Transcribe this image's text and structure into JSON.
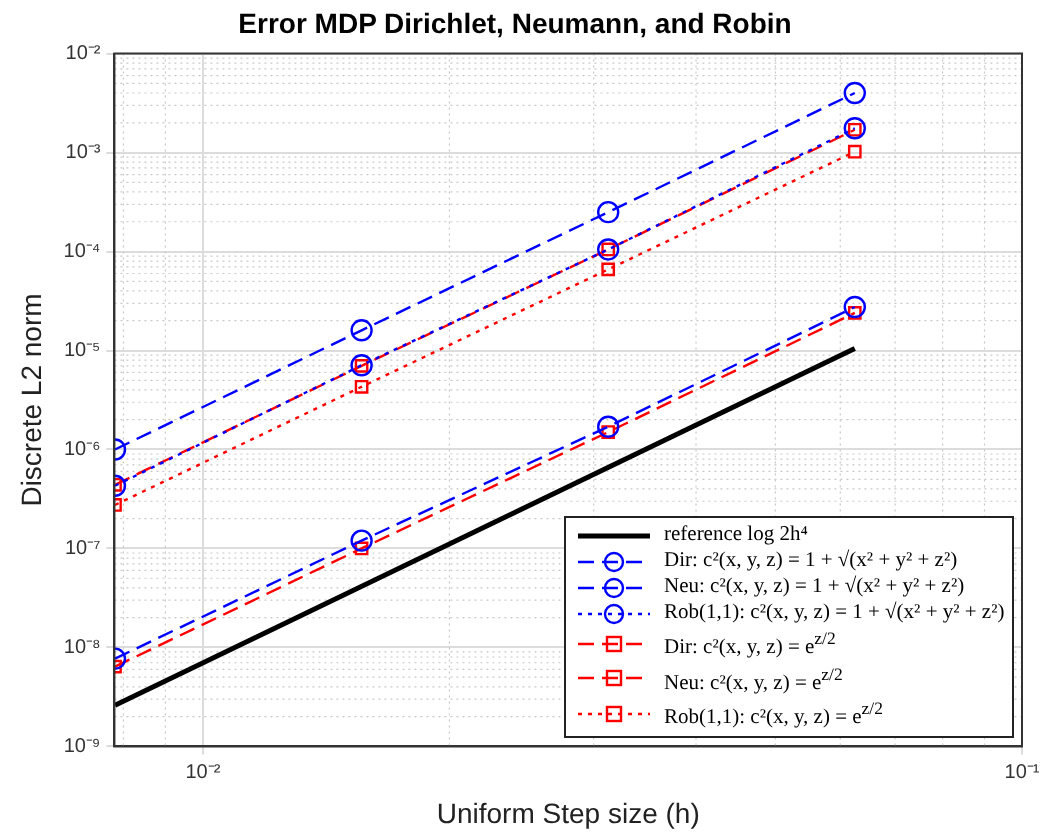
{
  "chart_data": {
    "type": "line",
    "title": "Error MDP Dirichlet, Neumann, and Robin",
    "xlabel": "Uniform Step size (h)",
    "ylabel": "Discrete L2 norm",
    "x": [
      0.0078125,
      0.015625,
      0.03125,
      0.0625
    ],
    "xlim": [
      0.0078,
      0.1
    ],
    "ylim": [
      1e-09,
      0.01
    ],
    "log": "xy",
    "grid": true,
    "legend": "bottom right",
    "xticks": [
      {
        "value": 0.01,
        "label": "10⁻²"
      },
      {
        "value": 0.1,
        "label": "10⁻¹"
      }
    ],
    "yticks": [
      {
        "value": 1e-09,
        "label": "10⁻⁹"
      },
      {
        "value": 1e-08,
        "label": "10⁻⁸"
      },
      {
        "value": 1e-07,
        "label": "10⁻⁷"
      },
      {
        "value": 1e-06,
        "label": "10⁻⁶"
      },
      {
        "value": 1e-05,
        "label": "10⁻⁵"
      },
      {
        "value": 0.0001,
        "label": "10⁻⁴"
      },
      {
        "value": 0.001,
        "label": "10⁻³"
      },
      {
        "value": 0.01,
        "label": "10⁻²"
      }
    ],
    "series": [
      {
        "name": "reference log 2h⁴",
        "color": "#000000",
        "marker": "none",
        "line_style": "solid",
        "x": [
          0.0078125,
          0.0625
        ],
        "values": [
          2.6e-09,
          1.05e-05
        ]
      },
      {
        "name": "Dir: c²(x, y, z) = 1 + √(x² + y² + z²)",
        "color": "#0000ff",
        "marker": "circle",
        "line_style": "dashed",
        "values": [
          1e-06,
          1.6e-05,
          0.00025,
          0.004
        ]
      },
      {
        "name": "Neu: c²(x, y, z) = 1 + √(x² + y² + z²)",
        "color": "#0000ff",
        "marker": "circle",
        "line_style": "dashed",
        "values": [
          7.7e-09,
          1.2e-07,
          1.7e-06,
          2.75e-05
        ]
      },
      {
        "name": "Rob(1,1): c²(x, y, z) = 1 + √(x² + y² + z²)",
        "color": "#0000ff",
        "marker": "circle",
        "line_style": "dotted",
        "values": [
          4.3e-07,
          7.1e-06,
          0.000105,
          0.00176
        ]
      },
      {
        "name": "Dir: c²(x, y, z) = e$^{z/2}$",
        "color": "#ff0000",
        "marker": "square",
        "line_style": "dashed",
        "values": [
          4.4e-07,
          7e-06,
          0.000105,
          0.0017
        ]
      },
      {
        "name": "Neu: c²(x, y, z) = e$^{z/2}$",
        "color": "#ff0000",
        "marker": "square",
        "line_style": "dashed",
        "values": [
          6.4e-09,
          1e-07,
          1.5e-06,
          2.4e-05
        ]
      },
      {
        "name": "Rob(1,1): c²(x, y, z) = e$^{z/2}$",
        "color": "#ff0000",
        "marker": "square",
        "line_style": "dotted",
        "values": [
          2.75e-07,
          4.3e-06,
          6.6e-05,
          0.00102
        ]
      }
    ]
  }
}
